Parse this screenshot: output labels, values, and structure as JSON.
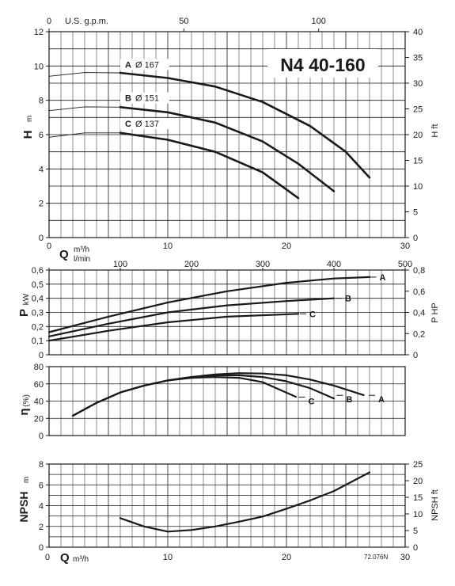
{
  "title": "N4 40-160",
  "code": "72.076N",
  "colors": {
    "ink": "#1a1a1a",
    "grid": "#1a1a1a",
    "background": "#ffffff"
  },
  "labels": {
    "usgpm": "U.S. g.p.m.",
    "h_main": "H",
    "h_unit": "m",
    "hft": "H ft",
    "q_main": "Q",
    "q_unit": "m³/h",
    "lmin": "l/min",
    "p_main": "P",
    "p_unit": "kW",
    "php": "P HP",
    "eta": "η",
    "eta_unit": "(%)",
    "npsh_main": "NPSH",
    "npsh_unit": "m",
    "npshft": "NPSH ft",
    "q_bottom_main": "Q",
    "q_bottom_unit": "m³/h"
  },
  "chart_data": [
    {
      "type": "line",
      "id": "head",
      "x_unit": "m³/h",
      "xlim": [
        0,
        30
      ],
      "ylim": [
        0,
        12
      ],
      "ylabel": "H m",
      "y2label": "H ft",
      "y2lim": [
        0,
        40
      ],
      "top_axis_label": "U.S. g.p.m.",
      "top_axis_ticks": [
        "0",
        "50",
        "100"
      ],
      "x_ticks": [
        "0",
        "10",
        "20",
        "30"
      ],
      "y_ticks": [
        "0",
        "2",
        "4",
        "6",
        "8",
        "10",
        "12"
      ],
      "y2_ticks": [
        "0",
        "5",
        "10",
        "15",
        "20",
        "25",
        "30",
        "35",
        "40"
      ],
      "series": [
        {
          "name": "A",
          "label": "Ø 167",
          "dashed_x": [
            0,
            3,
            6
          ],
          "dashed_y": [
            9.4,
            9.62,
            9.6
          ],
          "x": [
            6,
            10,
            14,
            18,
            22,
            25,
            27
          ],
          "y": [
            9.6,
            9.3,
            8.8,
            7.9,
            6.5,
            5.0,
            3.5
          ]
        },
        {
          "name": "B",
          "label": "Ø 151",
          "dashed_x": [
            0,
            3,
            6
          ],
          "dashed_y": [
            7.4,
            7.62,
            7.6
          ],
          "x": [
            6,
            10,
            14,
            18,
            21,
            24
          ],
          "y": [
            7.6,
            7.3,
            6.7,
            5.6,
            4.3,
            2.7
          ]
        },
        {
          "name": "C",
          "label": "Ø 137",
          "dashed_x": [
            0,
            3,
            6
          ],
          "dashed_y": [
            5.85,
            6.1,
            6.1
          ],
          "x": [
            6,
            10,
            14,
            18,
            21
          ],
          "y": [
            6.1,
            5.7,
            5.0,
            3.8,
            2.3
          ]
        }
      ]
    },
    {
      "type": "line",
      "id": "power",
      "xlim": [
        0,
        30
      ],
      "ylim": [
        0,
        0.6
      ],
      "ylabel": "P kW",
      "y2label": "P HP",
      "y2lim": [
        0,
        0.8
      ],
      "top_axis_label": "l/min",
      "top_axis_ticks": [
        "0",
        "100",
        "200",
        "300",
        "400",
        "500"
      ],
      "y_ticks": [
        "0",
        "0,1",
        "0,2",
        "0,3",
        "0,4",
        "0,5",
        "0,6"
      ],
      "y2_ticks": [
        "0",
        "0,2",
        "0,4",
        "0,6",
        "0,8"
      ],
      "series": [
        {
          "name": "A",
          "x": [
            0,
            5,
            10,
            15,
            20,
            24,
            27
          ],
          "y": [
            0.16,
            0.27,
            0.37,
            0.45,
            0.51,
            0.54,
            0.55
          ]
        },
        {
          "name": "B",
          "x": [
            0,
            5,
            10,
            15,
            20,
            24
          ],
          "y": [
            0.13,
            0.22,
            0.3,
            0.35,
            0.38,
            0.4
          ]
        },
        {
          "name": "C",
          "x": [
            0,
            5,
            10,
            15,
            21
          ],
          "y": [
            0.1,
            0.17,
            0.23,
            0.27,
            0.29
          ]
        }
      ]
    },
    {
      "type": "line",
      "id": "efficiency",
      "xlim": [
        0,
        30
      ],
      "ylim": [
        0,
        80
      ],
      "ylabel": "η(%)",
      "y_ticks": [
        "0",
        "20",
        "40",
        "60",
        "80"
      ],
      "series": [
        {
          "name": "A",
          "x": [
            2,
            4,
            6,
            8,
            10,
            12,
            14,
            16,
            18,
            20,
            22,
            24,
            26.5
          ],
          "y": [
            23,
            38,
            50,
            58,
            64,
            68,
            71,
            72.5,
            72,
            70,
            65,
            58,
            47
          ]
        },
        {
          "name": "B",
          "x": [
            2,
            4,
            6,
            8,
            10,
            12,
            14,
            16,
            18,
            20,
            22,
            24
          ],
          "y": [
            23,
            38,
            50,
            58,
            64,
            68,
            70,
            70,
            68,
            63,
            55,
            43
          ]
        },
        {
          "name": "C",
          "x": [
            2,
            4,
            6,
            8,
            10,
            12,
            14,
            16,
            18,
            20.8
          ],
          "y": [
            23,
            38,
            50,
            58,
            64,
            67,
            68,
            67,
            62,
            45
          ]
        }
      ]
    },
    {
      "type": "line",
      "id": "npsh",
      "xlim": [
        0,
        30
      ],
      "ylim": [
        0,
        8
      ],
      "ylabel": "NPSH m",
      "y2label": "NPSH ft",
      "y2lim": [
        0,
        25
      ],
      "xlabel": "Q m³/h",
      "x_ticks": [
        "0",
        "10",
        "20",
        "30"
      ],
      "y_ticks": [
        "0",
        "2",
        "4",
        "6",
        "8"
      ],
      "y2_ticks": [
        "0",
        "5",
        "10",
        "15",
        "20",
        "25"
      ],
      "series": [
        {
          "name": "NPSH",
          "x": [
            6,
            8,
            10,
            12,
            14,
            16,
            18,
            20,
            22,
            24,
            26,
            27
          ],
          "y": [
            2.8,
            2.0,
            1.5,
            1.65,
            2.0,
            2.45,
            2.95,
            3.7,
            4.5,
            5.4,
            6.6,
            7.2
          ]
        }
      ]
    }
  ]
}
